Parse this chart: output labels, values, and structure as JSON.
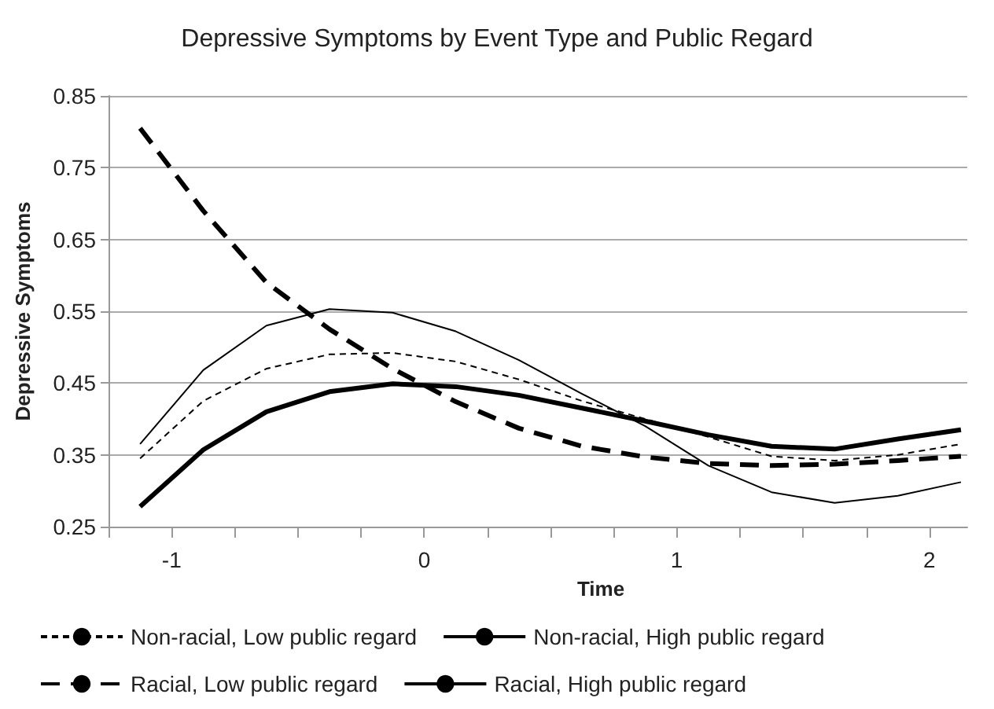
{
  "chart_data": {
    "type": "line",
    "title": "Depressive Symptoms by Event Type and Public Regard",
    "xlabel": "Time",
    "ylabel": "Depressive Symptoms",
    "x": [
      -1.125,
      -0.875,
      -0.625,
      -0.375,
      -0.125,
      0.125,
      0.375,
      0.625,
      0.875,
      1.125,
      1.375,
      1.625,
      1.875,
      2.125
    ],
    "series": [
      {
        "name": "Non-racial, Low public regard",
        "color": "#000000",
        "line_style": "dashed",
        "values": [
          0.345,
          0.425,
          0.47,
          0.49,
          0.492,
          0.48,
          0.455,
          0.425,
          0.4,
          0.375,
          0.348,
          0.342,
          0.35,
          0.365
        ]
      },
      {
        "name": "Non-racial, High public regard",
        "color": "#000000",
        "line_style": "solid",
        "values": [
          0.365,
          0.468,
          0.53,
          0.553,
          0.548,
          0.522,
          0.482,
          0.435,
          0.39,
          0.335,
          0.298,
          0.283,
          0.293,
          0.312
        ]
      },
      {
        "name": "Racial, Low public regard",
        "color": "#000000",
        "line_style": "dashed",
        "values": [
          0.805,
          0.69,
          0.59,
          0.525,
          0.47,
          0.424,
          0.387,
          0.362,
          0.347,
          0.338,
          0.335,
          0.337,
          0.342,
          0.348
        ]
      },
      {
        "name": "Racial, High public regard",
        "color": "#000000",
        "line_style": "solid",
        "values": [
          0.278,
          0.357,
          0.41,
          0.438,
          0.449,
          0.445,
          0.433,
          0.415,
          0.397,
          0.378,
          0.362,
          0.358,
          0.372,
          0.385
        ]
      }
    ],
    "xlim": [
      -1.25,
      2.15
    ],
    "xticks": [
      {
        "value": -1.25,
        "label": null
      },
      -1,
      {
        "value": -0.75,
        "label": null
      },
      {
        "value": -0.5,
        "label": null
      },
      {
        "value": -0.25,
        "label": null
      },
      0,
      {
        "value": 0.25,
        "label": null
      },
      {
        "value": 0.5,
        "label": null
      },
      {
        "value": 0.75,
        "label": null
      },
      1,
      {
        "value": 1.25,
        "label": null
      },
      {
        "value": 1.5,
        "label": null
      },
      {
        "value": 1.75,
        "label": null
      },
      2
    ],
    "ylim": [
      0.25,
      0.85
    ],
    "yticks": [
      0.25,
      0.35,
      0.45,
      0.55,
      0.65,
      0.75,
      0.85
    ],
    "grid": "y",
    "legend": "bottom",
    "marker": "none"
  }
}
